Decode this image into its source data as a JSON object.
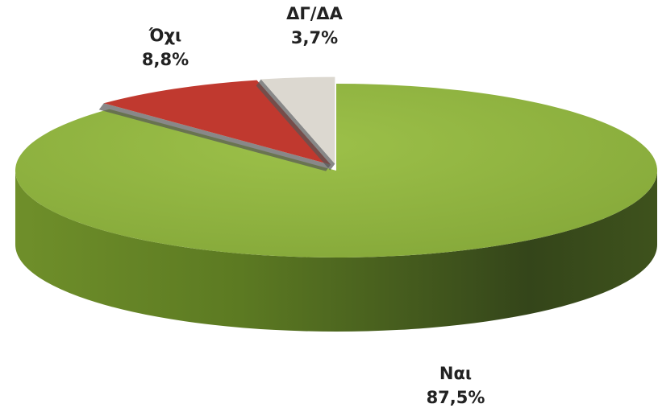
{
  "chart_data": {
    "type": "pie3d",
    "categories": [
      "Ναι",
      "Όχι",
      "ΔΓ/ΔΑ"
    ],
    "values": [
      87.5,
      8.8,
      3.7
    ],
    "value_labels": [
      "87,5%",
      "8,8%",
      "3,7%"
    ],
    "colors": [
      "#8db03e",
      "#c0392f",
      "#dcd8d0"
    ]
  }
}
